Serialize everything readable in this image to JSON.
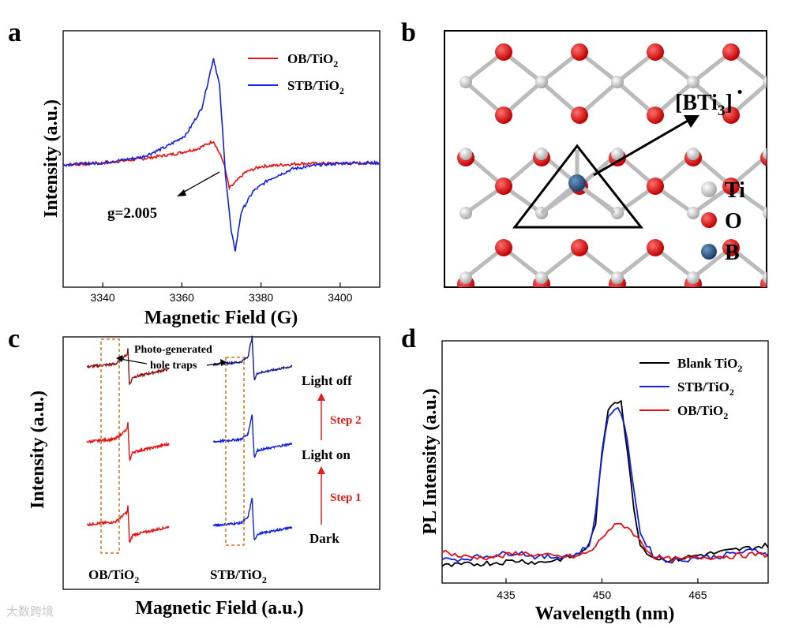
{
  "chart_data": [
    {
      "panel": "a",
      "type": "line",
      "xlabel": "Magnetic Field (G)",
      "ylabel": "Intensity (a.u.)",
      "xlim": [
        3330,
        3410
      ],
      "xticks": [
        3340,
        3360,
        3380,
        3400
      ],
      "annotation": "g=2.005",
      "series": [
        {
          "name": "OB/TiO2",
          "color": "#e81010",
          "x": [
            3330,
            3340,
            3350,
            3358,
            3364,
            3368,
            3370.5,
            3372,
            3373.5,
            3376,
            3380,
            3390,
            3400,
            3410
          ],
          "y": [
            -0.05,
            -0.02,
            0.05,
            0.13,
            0.22,
            0.35,
            0.0,
            -0.45,
            -0.35,
            -0.18,
            -0.08,
            -0.03,
            -0.03,
            -0.02
          ]
        },
        {
          "name": "STB/TiO2",
          "color": "#1020e0",
          "x": [
            3330,
            3340,
            3350,
            3356,
            3361,
            3365,
            3368,
            3369.5,
            3371,
            3372.5,
            3373.5,
            3375,
            3378,
            3382,
            3388,
            3395,
            3402,
            3410
          ],
          "y": [
            -0.05,
            -0.02,
            0.08,
            0.25,
            0.45,
            0.9,
            1.75,
            1.3,
            -0.2,
            -1.2,
            -1.5,
            -0.85,
            -0.5,
            -0.3,
            -0.12,
            -0.05,
            -0.02,
            -0.02
          ]
        }
      ]
    },
    {
      "panel": "b",
      "type": "other",
      "defect_label": "[BTi3]·",
      "legend": [
        {
          "label": "Ti",
          "color": "#c8c8c8"
        },
        {
          "label": "O",
          "color": "#e81010"
        },
        {
          "label": "B",
          "color": "#2a5a8a"
        }
      ]
    },
    {
      "panel": "c",
      "type": "line",
      "xlabel": "Magnetic Field (a.u.)",
      "ylabel": "Intensity (a.u.)",
      "samples": [
        "OB/TiO2",
        "STB/TiO2"
      ],
      "states": [
        "Light off",
        "Light on",
        "Dark"
      ],
      "steps": [
        "Step 2",
        "Step 1"
      ],
      "annotation": [
        "Photo-generated",
        "hole traps"
      ]
    },
    {
      "panel": "d",
      "type": "line",
      "xlabel": "Wavelength (nm)",
      "ylabel": "PL Intensity (a.u.)",
      "xlim": [
        425,
        476
      ],
      "xticks": [
        435,
        450,
        465
      ],
      "series": [
        {
          "name": "Blank TiO2",
          "color": "#000000",
          "x": [
            425,
            428,
            431,
            434,
            437,
            440,
            443,
            446,
            448,
            449,
            450,
            451,
            452,
            453,
            454,
            455,
            456,
            458,
            460,
            462,
            465,
            468,
            471,
            474,
            476
          ],
          "y": [
            5,
            8,
            12,
            15,
            20,
            14,
            22,
            34,
            60,
            120,
            300,
            420,
            440,
            440,
            300,
            160,
            60,
            28,
            22,
            24,
            34,
            40,
            48,
            55,
            60
          ]
        },
        {
          "name": "STB/TiO2",
          "color": "#1020e0",
          "x": [
            425,
            428,
            431,
            434,
            437,
            440,
            443,
            446,
            448,
            449,
            450,
            451,
            452,
            453,
            454,
            455,
            456,
            458,
            460,
            462,
            465,
            468,
            471,
            474,
            476
          ],
          "y": [
            22,
            24,
            30,
            36,
            42,
            28,
            30,
            36,
            60,
            140,
            300,
            400,
            420,
            410,
            330,
            210,
            90,
            35,
            20,
            20,
            28,
            30,
            40,
            46,
            36
          ]
        },
        {
          "name": "OB/TiO2",
          "color": "#e81010",
          "x": [
            425,
            428,
            431,
            434,
            437,
            440,
            443,
            446,
            448,
            449,
            450,
            451,
            452,
            453,
            454,
            455,
            456,
            458,
            460,
            462,
            465,
            468,
            471,
            474,
            476
          ],
          "y": [
            45,
            30,
            28,
            30,
            40,
            34,
            30,
            30,
            42,
            56,
            80,
            100,
            110,
            115,
            108,
            90,
            70,
            32,
            24,
            22,
            28,
            30,
            32,
            36,
            35
          ]
        }
      ]
    }
  ],
  "legend_a": {
    "ob": "OB/TiO",
    "ob_sub": "2",
    "stb": "STB/TiO",
    "stb_sub": "2"
  },
  "legend_d": {
    "blank": "Blank TiO",
    "blank_sub": "2",
    "stb": "STB/TiO",
    "stb_sub": "2",
    "ob": "OB/TiO",
    "ob_sub": "2"
  },
  "panel_c_labels": {
    "ob": "OB/TiO",
    "ob_sub": "2",
    "stb": "STB/TiO",
    "stb_sub": "2"
  },
  "panel_b_labels": {
    "defect_main": "[BTi",
    "defect_sub": "3",
    "defect_close": "]",
    "defect_dot": "·"
  },
  "panel_letters": {
    "a": "a",
    "b": "b",
    "c": "c",
    "d": "d"
  },
  "watermark": "大数跨境"
}
